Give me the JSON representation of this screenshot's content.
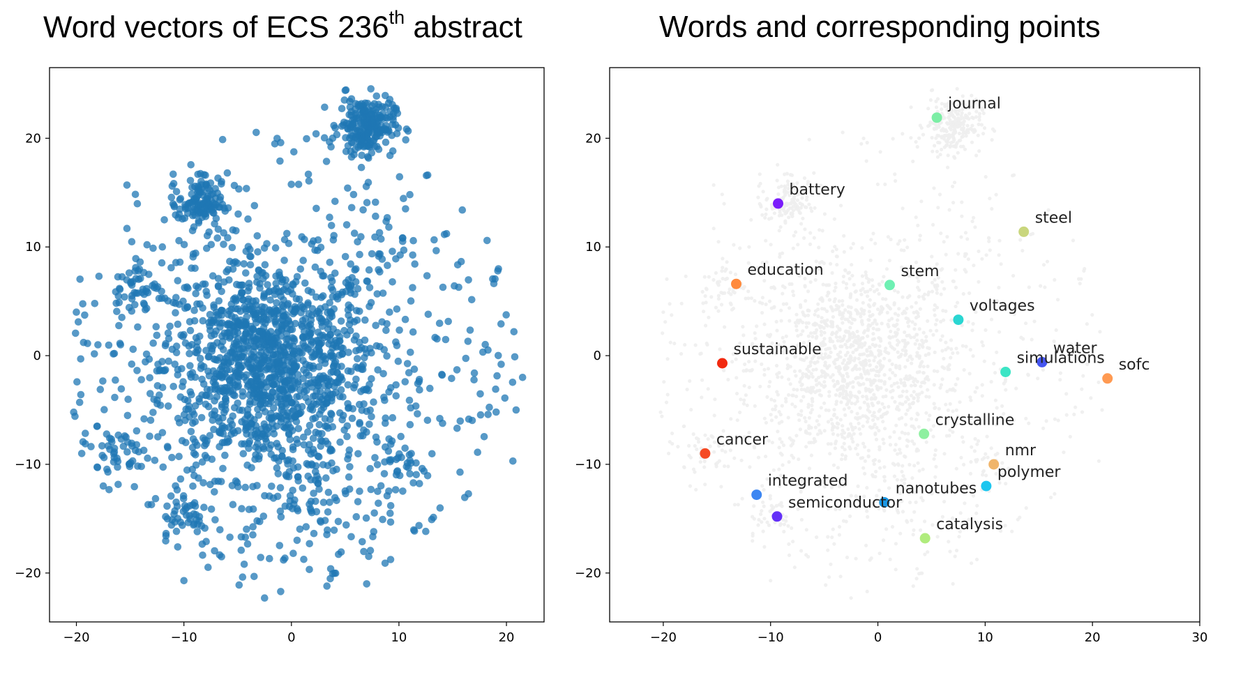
{
  "chart_data": [
    {
      "type": "scatter",
      "title": "Word vectors of ECS 236",
      "title_superscript": "th",
      "title_suffix": "abstract",
      "xlabel": "",
      "ylabel": "",
      "xlim": [
        -22.5,
        23.5
      ],
      "ylim": [
        -24.5,
        26.5
      ],
      "xticks": [
        -20,
        -10,
        0,
        10,
        20
      ],
      "yticks": [
        -20,
        -10,
        0,
        10,
        20
      ],
      "point_color": "#1f77b4",
      "clusters": [
        {
          "center": [
            -2,
            -1
          ],
          "sd": 5.0,
          "count": 1300
        },
        {
          "center": [
            7,
            21.2
          ],
          "sd": 1.3,
          "count": 230
        },
        {
          "center": [
            -8.5,
            14
          ],
          "sd": 1.0,
          "count": 110
        },
        {
          "center": [
            -14.5,
            6.5
          ],
          "sd": 1.0,
          "count": 35
        },
        {
          "center": [
            -15.5,
            -9
          ],
          "sd": 1.2,
          "count": 35
        },
        {
          "center": [
            -10,
            -14.5
          ],
          "sd": 1.5,
          "count": 45
        },
        {
          "center": [
            3,
            -14
          ],
          "sd": 2.2,
          "count": 45
        },
        {
          "center": [
            10,
            -10
          ],
          "sd": 1.5,
          "count": 35
        },
        {
          "center": [
            10,
            10
          ],
          "sd": 2.0,
          "count": 25
        }
      ],
      "spread": {
        "center": [
          0,
          0
        ],
        "radius": 21,
        "count": 450
      },
      "points": [
        [
          -20,
          4
        ],
        [
          -19.5,
          -9
        ],
        [
          -19.6,
          -0.3
        ],
        [
          -19.7,
          -4.3
        ],
        [
          -2.5,
          -22.3
        ],
        [
          -1,
          -21.7
        ],
        [
          3.3,
          -21.2
        ],
        [
          7,
          -21
        ],
        [
          -10,
          -20.7
        ],
        [
          5,
          24.4
        ],
        [
          -1,
          19.6
        ],
        [
          21.5,
          -2
        ],
        [
          20.7,
          2.2
        ],
        [
          20.9,
          -5
        ],
        [
          19.2,
          7.8
        ],
        [
          18.2,
          10.6
        ],
        [
          20.6,
          -9.7
        ],
        [
          -15.3,
          15.7
        ],
        [
          -11,
          16.7
        ],
        [
          -8,
          16.6
        ],
        [
          -15.3,
          11.7
        ],
        [
          -17.9,
          7.3
        ],
        [
          -18,
          1
        ],
        [
          -17.5,
          -12
        ]
      ]
    },
    {
      "type": "scatter",
      "title": "Words and corresponding points",
      "xlabel": "",
      "ylabel": "",
      "xlim": [
        -25,
        30
      ],
      "ylim": [
        -24.5,
        26.5
      ],
      "xticks": [
        -20,
        -10,
        0,
        10,
        20,
        30
      ],
      "yticks": [
        -20,
        -10,
        0,
        10,
        20
      ],
      "background_color": "#eeeeee",
      "words": [
        {
          "word": "journal",
          "x": 5.5,
          "y": 21.9,
          "color": "#7ceea5"
        },
        {
          "word": "battery",
          "x": -9.3,
          "y": 14,
          "color": "#7a1cfa"
        },
        {
          "word": "steel",
          "x": 13.6,
          "y": 11.4,
          "color": "#c9d67d"
        },
        {
          "word": "education",
          "x": -13.2,
          "y": 6.6,
          "color": "#ff8a3d"
        },
        {
          "word": "stem",
          "x": 1.1,
          "y": 6.5,
          "color": "#6ff0b3"
        },
        {
          "word": "voltages",
          "x": 7.5,
          "y": 3.3,
          "color": "#2ad6d2"
        },
        {
          "word": "sustainable",
          "x": -14.5,
          "y": -0.7,
          "color": "#f22a10"
        },
        {
          "word": "water",
          "x": 15.3,
          "y": -0.6,
          "color": "#4455f0"
        },
        {
          "word": "simulations",
          "x": 11.9,
          "y": -1.5,
          "color": "#3ce5c5"
        },
        {
          "word": "sofc",
          "x": 21.4,
          "y": -2.1,
          "color": "#ff9a52"
        },
        {
          "word": "crystalline",
          "x": 4.3,
          "y": -7.2,
          "color": "#8ef0a0"
        },
        {
          "word": "cancer",
          "x": -16.1,
          "y": -9,
          "color": "#f54a24"
        },
        {
          "word": "nmr",
          "x": 10.8,
          "y": -10,
          "color": "#f0b56a"
        },
        {
          "word": "polymer",
          "x": 10.1,
          "y": -12,
          "color": "#1cc6ef"
        },
        {
          "word": "integrated",
          "x": -11.3,
          "y": -12.8,
          "color": "#3c86f2"
        },
        {
          "word": "nanotubes",
          "x": 0.6,
          "y": -13.5,
          "color": "#1998e6"
        },
        {
          "word": "semiconductor",
          "x": -9.4,
          "y": -14.8,
          "color": "#6430f8"
        },
        {
          "word": "catalysis",
          "x": 4.4,
          "y": -16.8,
          "color": "#b0ec7d"
        }
      ]
    }
  ]
}
